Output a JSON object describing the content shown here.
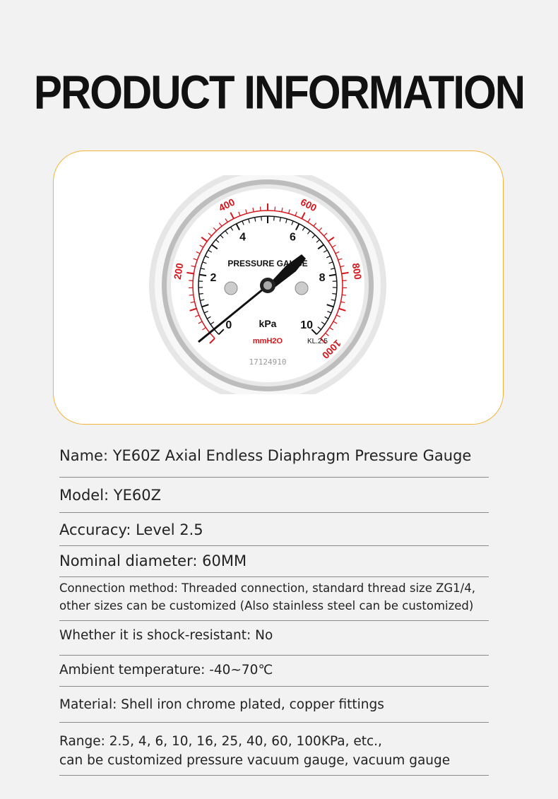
{
  "header": {
    "title": "PRODUCT INFORMATION"
  },
  "gauge": {
    "face_label": "PRESSURE GAUGE",
    "unit_primary": "kPa",
    "unit_secondary": "mmH2O",
    "accuracy_mark": "KL.2.5",
    "serial": "17124910",
    "primary_scale": [
      "0",
      "2",
      "4",
      "6",
      "8",
      "10"
    ],
    "secondary_scale": [
      "200",
      "400",
      "600",
      "800",
      "1000"
    ],
    "colors": {
      "primary": "#111111",
      "secondary": "#d4161c",
      "border": "#f4b23a"
    }
  },
  "specs": [
    {
      "text": "Name: YE60Z Axial Endless Diaphragm Pressure Gauge"
    },
    {
      "text": "Model: YE60Z"
    },
    {
      "text": "Accuracy: Level 2.5"
    },
    {
      "text": "Nominal diameter: 60MM"
    },
    {
      "line1": "Connection method: Threaded connection, standard thread size ZG1/4,",
      "line2": "other sizes can be customized (Also stainless steel can be customized)"
    },
    {
      "text": "Whether it is shock-resistant: No"
    },
    {
      "text": "Ambient temperature: -40~70℃"
    },
    {
      "text": "Material: Shell iron chrome plated, copper fittings"
    },
    {
      "line1": "Range: 2.5, 4, 6, 10, 16, 25, 40, 60, 100KPa, etc.,",
      "line2": "can be customized pressure vacuum gauge, vacuum gauge"
    }
  ]
}
